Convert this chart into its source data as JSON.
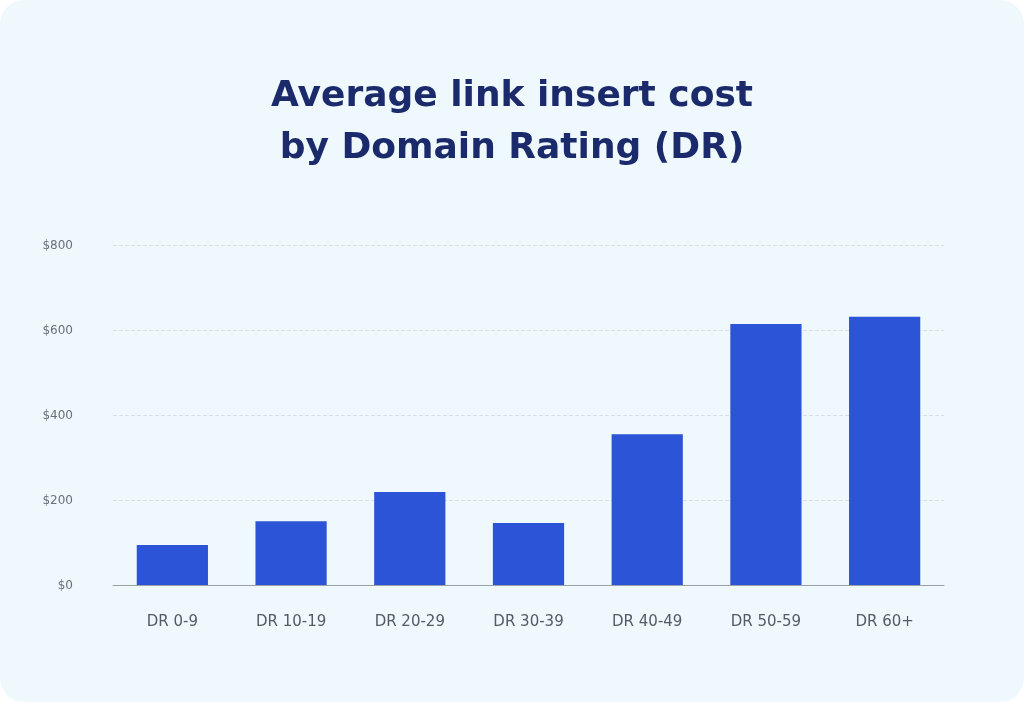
{
  "chart_data": {
    "type": "bar",
    "title": "Average link insert cost\nby Domain Rating (DR)",
    "categories": [
      "DR 0-9",
      "DR 10-19",
      "DR 20-29",
      "DR 30-39",
      "DR 40-49",
      "DR 50-59",
      "DR 60+"
    ],
    "values": [
      94,
      150,
      219,
      146,
      355,
      614,
      631
    ],
    "color": "#2b55d6",
    "ylim": [
      0,
      800
    ],
    "yticks": [
      {
        "value": 0,
        "label": "$0"
      },
      {
        "value": 200,
        "label": "$200"
      },
      {
        "value": 400,
        "label": "$400"
      },
      {
        "value": 600,
        "label": "$600"
      },
      {
        "value": 800,
        "label": "$800"
      }
    ],
    "grid": "y"
  }
}
